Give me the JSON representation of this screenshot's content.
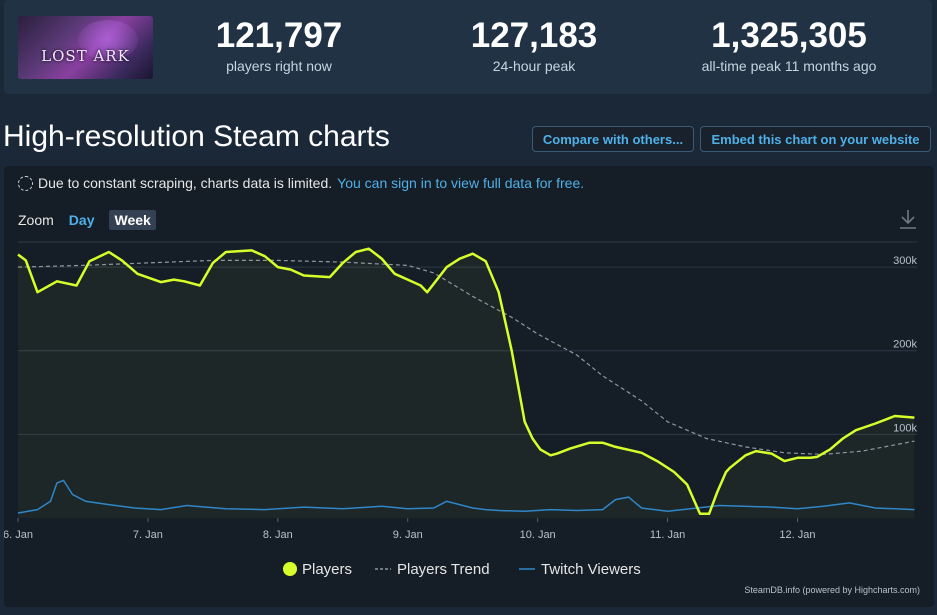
{
  "game": {
    "logo_text": "LOST ARK"
  },
  "stats": [
    {
      "value": "121,797",
      "label": "players right now"
    },
    {
      "value": "127,183",
      "label": "24-hour peak"
    },
    {
      "value": "1,325,305",
      "label": "all-time peak 11 months ago"
    }
  ],
  "page": {
    "title": "High-resolution Steam charts"
  },
  "buttons": {
    "compare": "Compare with others...",
    "embed": "Embed this chart on your website"
  },
  "notice": {
    "text": "Due to constant scraping, charts data is limited.",
    "link": "You can sign in to view full data for free."
  },
  "zoom": {
    "label": "Zoom",
    "day": "Day",
    "week": "Week"
  },
  "credit": "SteamDB.info (powered by Highcharts.com)",
  "colors": {
    "players": "#d7ff2a",
    "trend": "#8f98a0",
    "twitch": "#2f86c9",
    "grid": "#2c3a48"
  },
  "chart_data": {
    "type": "line",
    "x_ticks": [
      "6. Jan",
      "7. Jan",
      "8. Jan",
      "9. Jan",
      "10. Jan",
      "11. Jan",
      "12. Jan"
    ],
    "y_ticks": [
      "100k",
      "200k",
      "300k"
    ],
    "ylim": [
      0,
      330000
    ],
    "xlim": [
      0,
      6.92
    ],
    "grid": true,
    "legend_position": "bottom",
    "series": [
      {
        "name": "Players",
        "x": [
          0.0,
          0.06,
          0.15,
          0.3,
          0.45,
          0.55,
          0.7,
          0.8,
          0.92,
          1.1,
          1.2,
          1.28,
          1.4,
          1.5,
          1.6,
          1.8,
          1.9,
          2.0,
          2.1,
          2.2,
          2.4,
          2.5,
          2.6,
          2.7,
          2.8,
          2.9,
          3.0,
          3.1,
          3.15,
          3.3,
          3.4,
          3.5,
          3.6,
          3.7,
          3.8,
          3.9,
          3.96,
          4.02,
          4.1,
          4.15,
          4.25,
          4.4,
          4.5,
          4.6,
          4.8,
          4.92,
          5.05,
          5.15,
          5.25,
          5.32,
          5.38,
          5.45,
          5.48,
          5.6,
          5.68,
          5.8,
          5.9,
          6.0,
          6.1,
          6.15,
          6.25,
          6.35,
          6.45,
          6.6,
          6.75,
          6.9
        ],
        "y": [
          315000,
          308000,
          270000,
          283000,
          278000,
          307000,
          318000,
          308000,
          292000,
          282000,
          285000,
          283000,
          278000,
          305000,
          318000,
          320000,
          313000,
          300000,
          297000,
          290000,
          288000,
          305000,
          318000,
          322000,
          310000,
          292000,
          285000,
          278000,
          270000,
          300000,
          310000,
          316000,
          307000,
          270000,
          200000,
          115000,
          95000,
          82000,
          75000,
          77000,
          83000,
          90000,
          90000,
          85000,
          78000,
          68000,
          55000,
          40000,
          5000,
          5000,
          30000,
          55000,
          60000,
          75000,
          80000,
          77000,
          68000,
          72000,
          72000,
          73000,
          82000,
          95000,
          105000,
          113000,
          122000,
          120000
        ]
      },
      {
        "name": "Players Trend",
        "x": [
          0.0,
          0.5,
          1.0,
          1.5,
          2.0,
          2.5,
          3.0,
          3.2,
          3.5,
          3.8,
          4.0,
          4.3,
          4.5,
          4.8,
          5.0,
          5.3,
          5.6,
          5.9,
          6.2,
          6.5,
          6.9
        ],
        "y": [
          300000,
          302000,
          305000,
          308000,
          308000,
          306000,
          302000,
          293000,
          265000,
          240000,
          220000,
          195000,
          170000,
          140000,
          115000,
          95000,
          85000,
          78000,
          76000,
          80000,
          92000
        ]
      },
      {
        "name": "Twitch Viewers",
        "x": [
          0.0,
          0.15,
          0.25,
          0.3,
          0.35,
          0.42,
          0.52,
          0.7,
          0.9,
          1.1,
          1.3,
          1.6,
          1.9,
          2.2,
          2.5,
          2.8,
          3.0,
          3.2,
          3.3,
          3.5,
          3.6,
          3.7,
          3.9,
          4.1,
          4.3,
          4.5,
          4.6,
          4.7,
          4.8,
          5.0,
          5.4,
          5.8,
          6.0,
          6.2,
          6.4,
          6.6,
          6.9
        ],
        "y": [
          6000,
          10000,
          20000,
          42000,
          45000,
          28000,
          20000,
          16000,
          12000,
          10000,
          15000,
          11000,
          10000,
          13000,
          11000,
          14000,
          11000,
          12000,
          20000,
          12000,
          10000,
          9000,
          8000,
          10000,
          9000,
          10000,
          22000,
          25000,
          12000,
          8000,
          15000,
          13000,
          11000,
          14000,
          18000,
          12000,
          10000
        ]
      }
    ]
  }
}
